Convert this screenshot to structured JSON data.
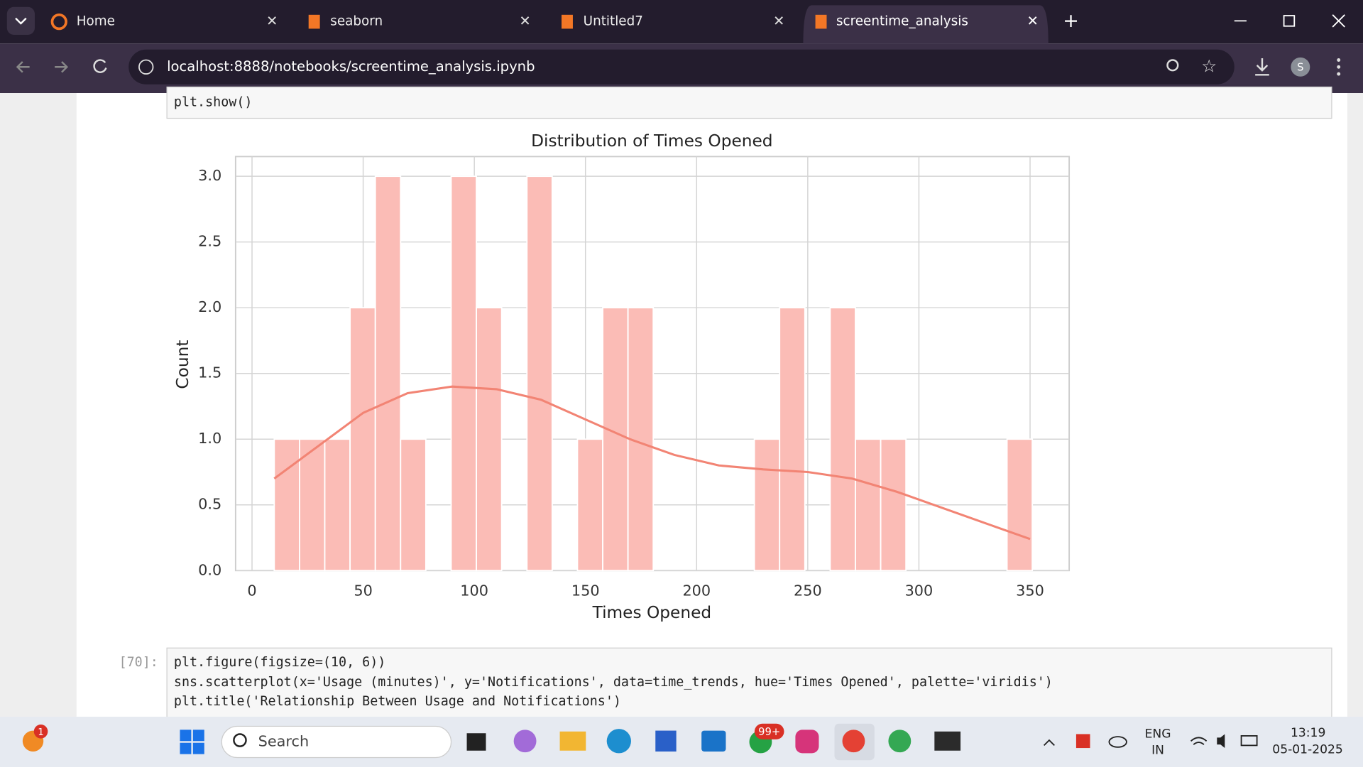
{
  "browser": {
    "tabs": [
      "Home",
      "seaborn",
      "Untitled7",
      "screentime_analysis"
    ],
    "url": "localhost:8888/notebooks/screentime_analysis.ipynb",
    "profile": "S"
  },
  "notebook": {
    "prev_code": "plt.show()",
    "cell_prompt": "[70]:",
    "code": [
      "plt.figure(figsize=(10, 6))",
      "sns.scatterplot(x='Usage (minutes)', y='Notifications', data=time_trends, hue='Times Opened', palette='viridis')",
      "plt.title('Relationship Between Usage and Notifications')"
    ]
  },
  "chart_data": {
    "type": "histogram",
    "title": "Distribution of Times Opened",
    "xlabel": "Times Opened",
    "ylabel": "Count",
    "bins": [
      10,
      21.37,
      32.73,
      44.1,
      55.47,
      66.83,
      78.2,
      89.57,
      100.93,
      112.3,
      123.67,
      135.03,
      146.4,
      157.77,
      169.13,
      180.5,
      191.87,
      203.23,
      214.6,
      225.97,
      237.33,
      248.7,
      260.07,
      271.43,
      282.8,
      294.17,
      305.53,
      316.9,
      328.27,
      339.63,
      351
    ],
    "counts": [
      1,
      1,
      1,
      2,
      3,
      1,
      0,
      3,
      2,
      0,
      3,
      0,
      1,
      2,
      2,
      0,
      0,
      0,
      0,
      1,
      2,
      0,
      2,
      1,
      1,
      0,
      0,
      0,
      0,
      1
    ],
    "color": "#fbbcb6",
    "kde": {
      "color": "#f28474",
      "x": [
        10,
        30,
        50,
        70,
        90,
        110,
        130,
        150,
        170,
        190,
        210,
        230,
        250,
        270,
        290,
        310,
        330,
        350
      ],
      "values": [
        0.7,
        0.95,
        1.2,
        1.35,
        1.4,
        1.38,
        1.3,
        1.15,
        1.0,
        0.88,
        0.8,
        0.77,
        0.75,
        0.7,
        0.6,
        0.48,
        0.36,
        0.24
      ]
    },
    "xlim": [
      -7.4,
      367.6
    ],
    "xticks": [
      0,
      50,
      100,
      150,
      200,
      250,
      300,
      350
    ],
    "ylim": [
      0,
      3.15
    ],
    "yticks": [
      {
        "value": 0,
        "label": "0.0"
      },
      {
        "value": 0.5,
        "label": "0.5"
      },
      {
        "value": 1,
        "label": "1.0"
      },
      {
        "value": 1.5,
        "label": "1.5"
      },
      {
        "value": 2,
        "label": "2.0"
      },
      {
        "value": 2.5,
        "label": "2.5"
      },
      {
        "value": 3,
        "label": "3.0"
      }
    ],
    "grid": true
  },
  "taskbar": {
    "notification_badge": "1",
    "search": "Search",
    "whatsapp_badge": "99+",
    "language": [
      "ENG",
      "IN"
    ],
    "time": "13:19",
    "date": "05-01-2025"
  }
}
